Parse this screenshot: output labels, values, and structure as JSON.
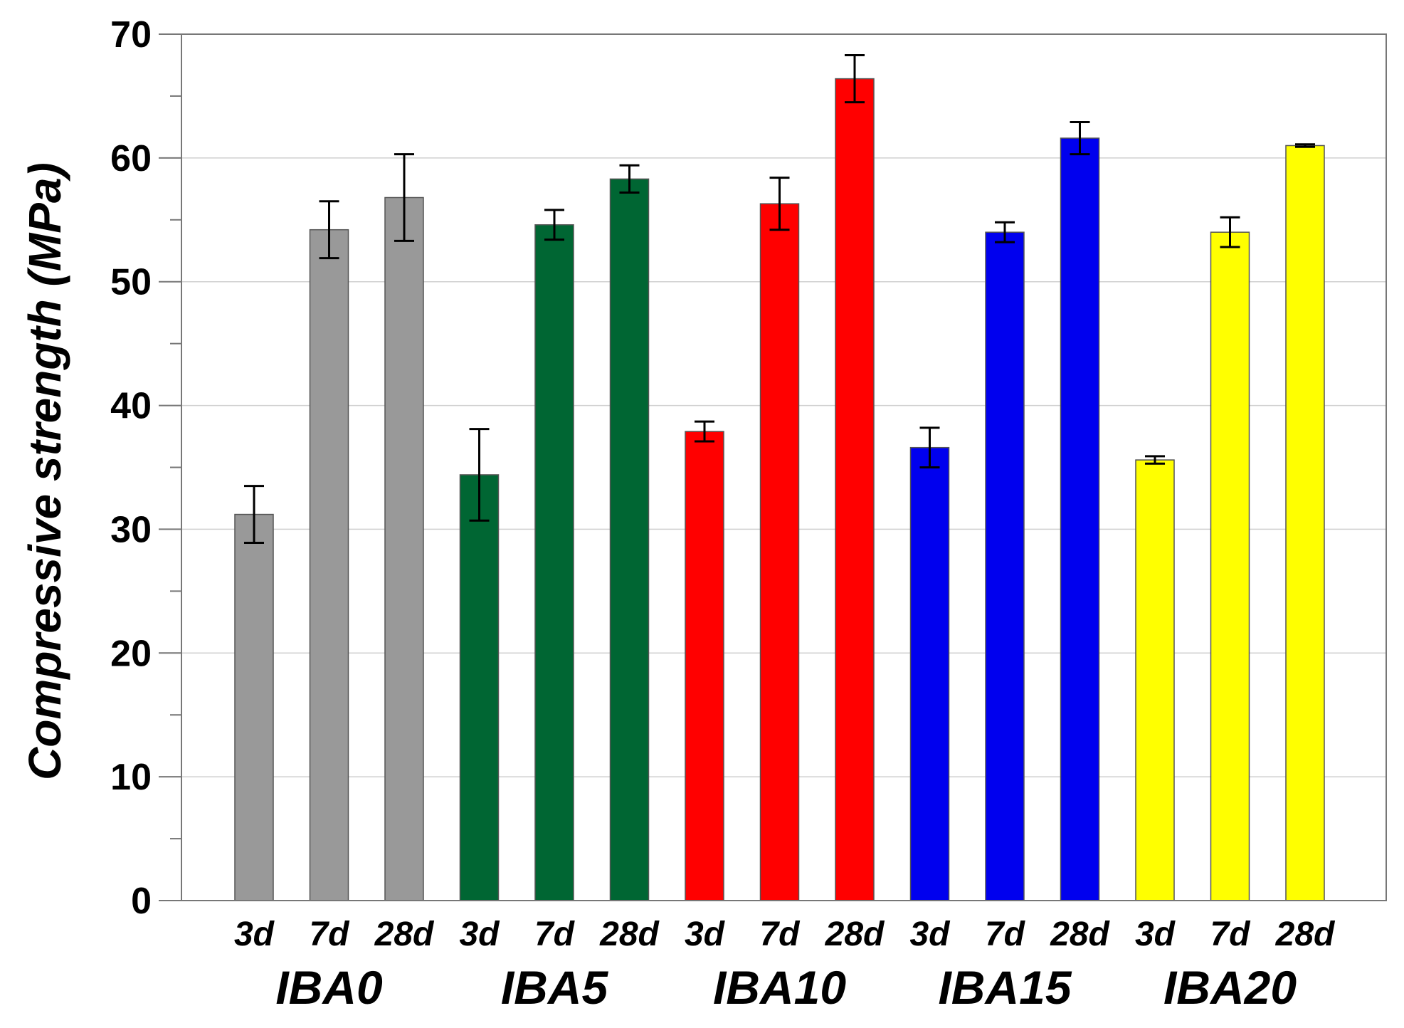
{
  "chart_data": {
    "type": "bar",
    "ylabel": "Compressive strength (MPa)",
    "xlabel": "",
    "ylim": [
      0,
      70
    ],
    "yticks": [
      0,
      10,
      20,
      30,
      40,
      50,
      60,
      70
    ],
    "grid": "horizontal",
    "groups": [
      {
        "name": "IBA0",
        "color": "#999999",
        "bars": [
          {
            "label": "3d",
            "value": 31.2,
            "err": 2.3
          },
          {
            "label": "7d",
            "value": 54.2,
            "err": 2.3
          },
          {
            "label": "28d",
            "value": 56.8,
            "err": 3.5
          }
        ]
      },
      {
        "name": "IBA5",
        "color": "#006633",
        "bars": [
          {
            "label": "3d",
            "value": 34.4,
            "err": 3.7
          },
          {
            "label": "7d",
            "value": 54.6,
            "err": 1.2
          },
          {
            "label": "28d",
            "value": 58.3,
            "err": 1.1
          }
        ]
      },
      {
        "name": "IBA10",
        "color": "#ff0000",
        "bars": [
          {
            "label": "3d",
            "value": 37.9,
            "err": 0.8
          },
          {
            "label": "7d",
            "value": 56.3,
            "err": 2.1
          },
          {
            "label": "28d",
            "value": 66.4,
            "err": 1.9
          }
        ]
      },
      {
        "name": "IBA15",
        "color": "#0000ee",
        "bars": [
          {
            "label": "3d",
            "value": 36.6,
            "err": 1.6
          },
          {
            "label": "7d",
            "value": 54.0,
            "err": 0.8
          },
          {
            "label": "28d",
            "value": 61.6,
            "err": 1.3
          }
        ]
      },
      {
        "name": "IBA20",
        "color": "#ffff00",
        "bars": [
          {
            "label": "3d",
            "value": 35.6,
            "err": 0.3
          },
          {
            "label": "7d",
            "value": 54.0,
            "err": 1.2
          },
          {
            "label": "28d",
            "value": 61.0,
            "err": 0.1
          }
        ]
      }
    ]
  }
}
